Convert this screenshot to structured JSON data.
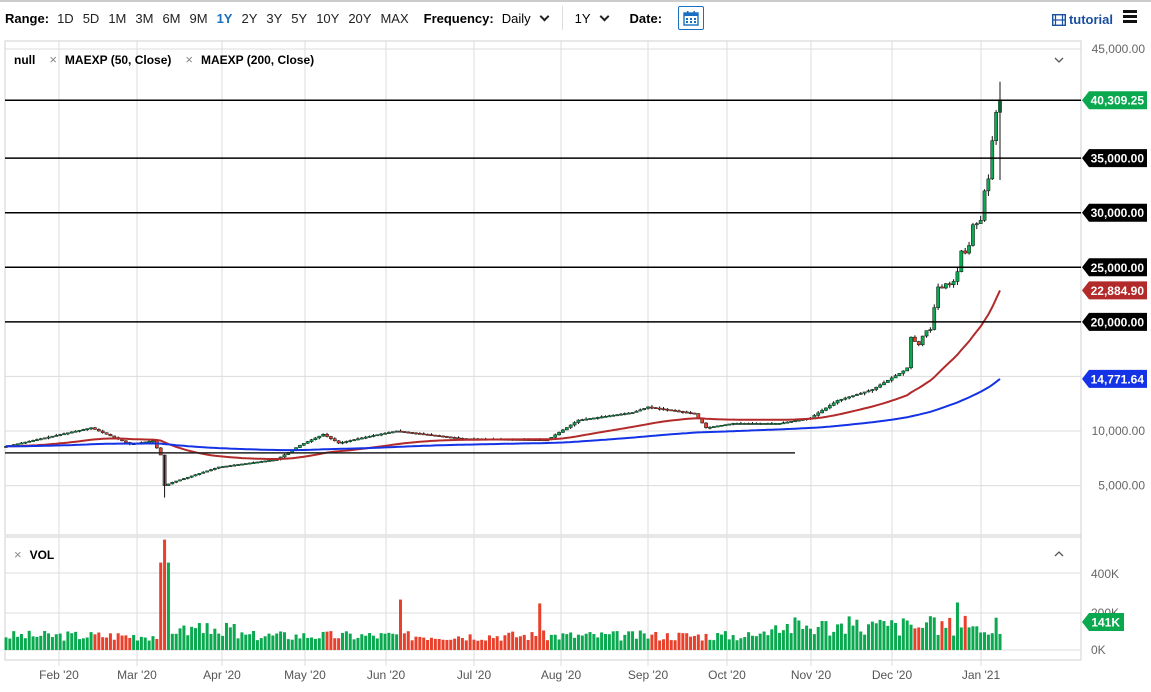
{
  "toolbar": {
    "range_label": "Range:",
    "ranges": [
      "1D",
      "5D",
      "1M",
      "3M",
      "6M",
      "9M",
      "1Y",
      "2Y",
      "3Y",
      "5Y",
      "10Y",
      "20Y",
      "MAX"
    ],
    "active_range": "1Y",
    "frequency_label": "Frequency:",
    "frequency_value": "Daily",
    "period_value": "1Y",
    "date_label": "Date:",
    "calendar_icon": "calendar-icon",
    "tutorial_label": "tutorial",
    "tutorial_icon": "film-icon",
    "menu_icon": "hamburger-menu-icon"
  },
  "legend": {
    "main_series": "null",
    "indicators": [
      "MAEXP (50, Close)",
      "MAEXP (200, Close)"
    ],
    "volume": "VOL"
  },
  "colors": {
    "up": "#0aa84f",
    "down": "#e8402a",
    "ma50": "#b22a2a",
    "ma200": "#1432e6",
    "grid": "#dcdcdc",
    "price_tag": "#0aa84f",
    "hline_tag": "#000000"
  },
  "chart_data": {
    "type": "candlestick",
    "title": "",
    "xlabel": "",
    "ylabel": "",
    "ylim": [
      2000,
      46000
    ],
    "y_ticks": [
      "45,000.00",
      "10,000.00",
      "5,000.00"
    ],
    "x_ticks": [
      "Feb '20",
      "Mar '20",
      "Apr '20",
      "May '20",
      "Jun '20",
      "Jul '20",
      "Aug '20",
      "Sep '20",
      "Oct '20",
      "Nov '20",
      "Dec '20",
      "Jan '21"
    ],
    "grid": true,
    "last_price": "40,309.25",
    "horizontal_lines": [
      {
        "value": 40309.25,
        "label": "40,309.25",
        "color": "#0aa84f"
      },
      {
        "value": 35000,
        "label": "35,000.00",
        "color": "#000000"
      },
      {
        "value": 30000,
        "label": "30,000.00",
        "color": "#000000"
      },
      {
        "value": 25000,
        "label": "25,000.00",
        "color": "#000000"
      },
      {
        "value": 20000,
        "label": "20,000.00",
        "color": "#000000"
      }
    ],
    "support_line": {
      "value": 8000,
      "x_end_label": "late Oct '20"
    },
    "series": [
      {
        "name": "MAEXP (50, Close)",
        "last_value": "22,884.90",
        "color": "#b22a2a"
      },
      {
        "name": "MAEXP (200, Close)",
        "last_value": "14,771.64",
        "color": "#1432e6"
      }
    ],
    "close_keypoints": [
      [
        "Jan 13 '20",
        8600
      ],
      [
        "Feb 12 '20",
        10300
      ],
      [
        "Feb 26 '20",
        8800
      ],
      [
        "Mar 7 '20",
        9100
      ],
      [
        "Mar 12 '20",
        5000
      ],
      [
        "Mar 13 '20",
        4800
      ],
      [
        "Apr 1 '20",
        6500
      ],
      [
        "Apr 29 '20",
        8700
      ],
      [
        "May 8 '20",
        9900
      ],
      [
        "Jun 1 '20",
        10100
      ],
      [
        "Jul 1 '20",
        9200
      ],
      [
        "Jul 27 '20",
        11000
      ],
      [
        "Aug 17 '20",
        12000
      ],
      [
        "Sep 2 '20",
        11500
      ],
      [
        "Sep 5 '20",
        10300
      ],
      [
        "Oct 7 '20",
        10600
      ],
      [
        "Oct 21 '20",
        12800
      ],
      [
        "Nov 5 '20",
        15500
      ],
      [
        "Nov 24 '20",
        19200
      ],
      [
        "Dec 1 '20",
        19000
      ],
      [
        "Dec 11 '20",
        18000
      ],
      [
        "Dec 17 '20",
        23000
      ],
      [
        "Dec 27 '20",
        26500
      ],
      [
        "Jan 2 '21",
        32000
      ],
      [
        "Jan 7 '21",
        39500
      ],
      [
        "Jan 8 '21",
        40309.25
      ]
    ],
    "volume": {
      "ylim": [
        0,
        500000
      ],
      "y_ticks": [
        "400K",
        "200K",
        "0K"
      ],
      "last_value": "141K",
      "peak": {
        "date": "Mar 13 '20",
        "value": 480000
      }
    }
  }
}
